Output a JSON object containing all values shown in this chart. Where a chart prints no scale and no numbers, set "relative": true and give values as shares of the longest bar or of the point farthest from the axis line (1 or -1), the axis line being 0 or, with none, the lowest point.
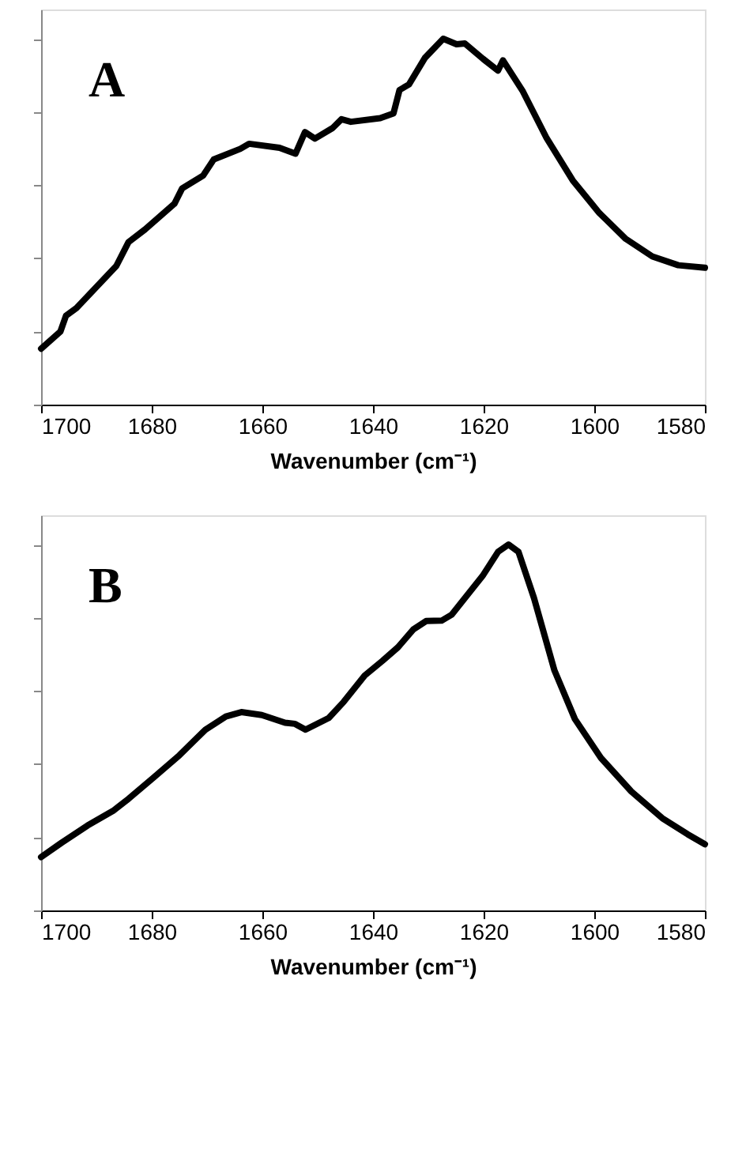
{
  "chart_data": [
    {
      "type": "line",
      "relative": true,
      "xlabel": "Wavenumber (cm⁻¹)",
      "annotations": [
        "A"
      ],
      "xlim": [
        1700,
        1580
      ],
      "xticks": [
        1700,
        1680,
        1660,
        1640,
        1620,
        1600,
        1580
      ],
      "tick_labels": "x",
      "grid": false,
      "marker": "none",
      "line_style": "solid",
      "series": [
        {
          "color": "#000000",
          "x": [
            1700,
            1696.5,
            1695.5,
            1693.6,
            1686.4,
            1684.2,
            1681.2,
            1675.9,
            1674.5,
            1670.7,
            1668.8,
            1664.0,
            1662.4,
            1656.9,
            1654.0,
            1652.3,
            1650.5,
            1647.3,
            1645.7,
            1644.0,
            1638.7,
            1636.3,
            1635.2,
            1633.5,
            1630.6,
            1627.3,
            1624.9,
            1623.4,
            1620.1,
            1617.4,
            1616.5,
            1612.9,
            1608.6,
            1603.9,
            1599.1,
            1594.3,
            1589.5,
            1584.8,
            1580
          ],
          "values": [
            0.153,
            0.2,
            0.243,
            0.264,
            0.379,
            0.444,
            0.479,
            0.549,
            0.591,
            0.626,
            0.67,
            0.699,
            0.713,
            0.702,
            0.686,
            0.745,
            0.727,
            0.756,
            0.78,
            0.773,
            0.783,
            0.796,
            0.86,
            0.875,
            0.948,
            1.0,
            0.985,
            0.987,
            0.945,
            0.913,
            0.941,
            0.856,
            0.728,
            0.613,
            0.524,
            0.453,
            0.405,
            0.381,
            0.374
          ]
        }
      ]
    },
    {
      "type": "line",
      "relative": true,
      "xlabel": "Wavenumber (cm⁻¹)",
      "annotations": [
        "B"
      ],
      "xlim": [
        1700,
        1580
      ],
      "xticks": [
        1700,
        1680,
        1660,
        1640,
        1620,
        1600,
        1580
      ],
      "tick_labels": "x",
      "grid": false,
      "marker": "none",
      "line_style": "solid",
      "series": [
        {
          "color": "#000000",
          "x": [
            1700,
            1696.3,
            1691.6,
            1687.0,
            1684.2,
            1679.6,
            1675.0,
            1670.3,
            1666.6,
            1663.8,
            1660.1,
            1655.9,
            1654.1,
            1652.2,
            1648.0,
            1645.3,
            1641.5,
            1638.3,
            1635.5,
            1632.7,
            1630.4,
            1627.6,
            1625.8,
            1620.2,
            1617.4,
            1615.5,
            1613.7,
            1610.9,
            1607.2,
            1603.5,
            1598.8,
            1593.3,
            1587.7,
            1583.1,
            1580
          ],
          "values": [
            0.146,
            0.185,
            0.232,
            0.272,
            0.305,
            0.364,
            0.424,
            0.494,
            0.53,
            0.542,
            0.534,
            0.513,
            0.51,
            0.494,
            0.526,
            0.57,
            0.642,
            0.682,
            0.719,
            0.768,
            0.791,
            0.792,
            0.808,
            0.914,
            0.98,
            1.0,
            0.98,
            0.854,
            0.656,
            0.523,
            0.417,
            0.325,
            0.252,
            0.208,
            0.181
          ]
        }
      ]
    }
  ]
}
